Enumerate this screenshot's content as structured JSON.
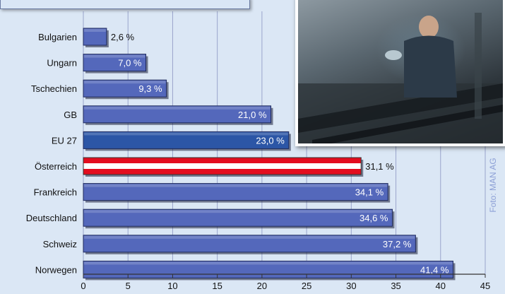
{
  "chart_data": {
    "type": "bar",
    "orientation": "horizontal",
    "categories": [
      "Bulgarien",
      "Ungarn",
      "Tschechien",
      "GB",
      "EU 27",
      "Österreich",
      "Frankreich",
      "Deutschland",
      "Schweiz",
      "Norwegen"
    ],
    "values": [
      2.6,
      7.0,
      9.3,
      21.0,
      23.0,
      31.1,
      34.1,
      34.6,
      37.2,
      41.4
    ],
    "value_labels": [
      "2,6 %",
      "7,0 %",
      "9,3 %",
      "21,0 %",
      "23,0 %",
      "31,1 %",
      "34,1 %",
      "34,6 %",
      "37,2 %",
      "41,4 %"
    ],
    "highlight": {
      "EU 27": "#2c56a6",
      "Österreich": "austria-flag"
    },
    "bar_color": "#5468bb",
    "flag_colors": [
      "#e30d1f",
      "#ffffff",
      "#e30d1f"
    ],
    "background_color": "#dbe7f5",
    "grid_color": "#9aa4cc",
    "xlim": [
      0,
      45
    ],
    "x_ticks": [
      0,
      5,
      10,
      15,
      20,
      25,
      30,
      35,
      40,
      45
    ],
    "grid": true
  },
  "photo": {
    "icon": "factory-worker-photo"
  },
  "credit": "Foto: MAN AG"
}
